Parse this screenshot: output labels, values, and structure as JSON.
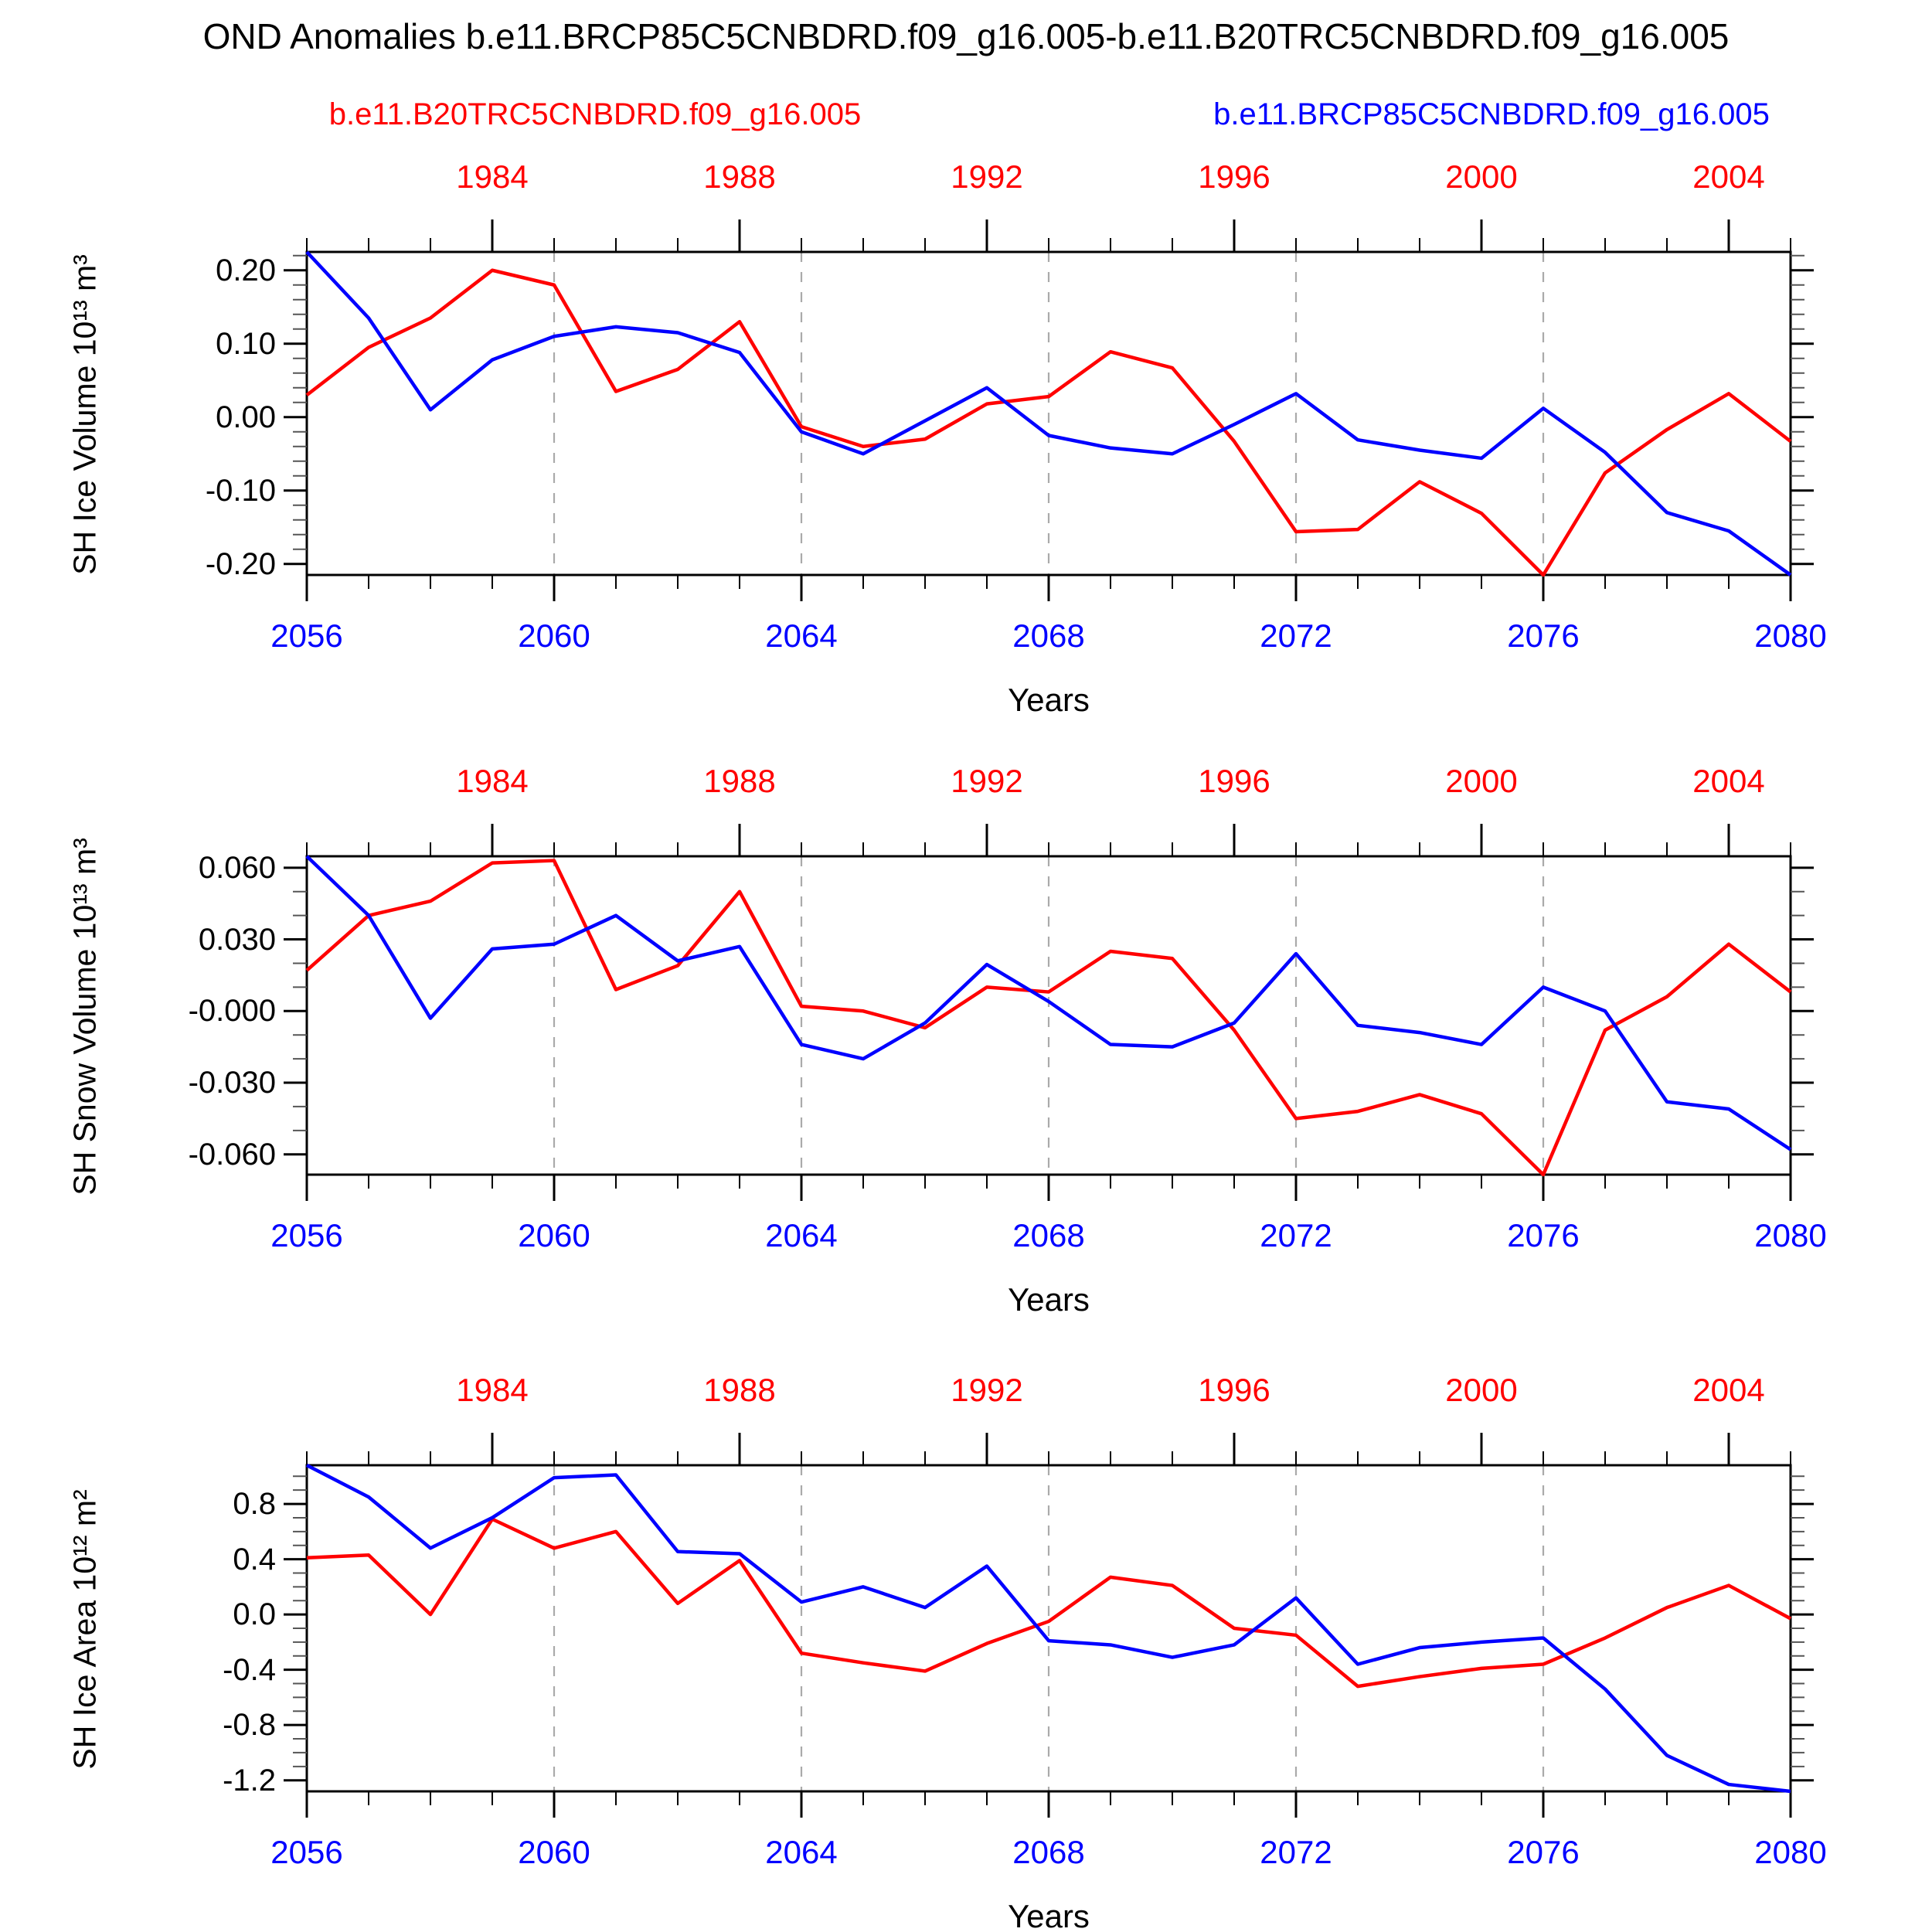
{
  "title": "OND Anomalies b.e11.BRCP85C5CNBDRD.f09_g16.005-b.e11.B20TRC5CNBDRD.f09_g16.005",
  "legend": {
    "red_label": "b.e11.B20TRC5CNBDRD.f09_g16.005",
    "blue_label": "b.e11.BRCP85C5CNBDRD.f09_g16.005"
  },
  "colors": {
    "red_series": "#ff0000",
    "blue_series": "#0000ff",
    "axis": "#000000",
    "gridline": "#aaaaaa"
  },
  "x_axis": {
    "xlabel": "Years",
    "bottom_years": [
      "2056",
      "2060",
      "2064",
      "2068",
      "2072",
      "2076",
      "2080"
    ],
    "top_years": [
      "1984",
      "1988",
      "1992",
      "1996",
      "2000",
      "2004"
    ],
    "year_start": 2056,
    "year_end": 2080
  },
  "chart_data": [
    {
      "type": "line",
      "title": "",
      "ylabel": "SH Ice Volume 10¹³ m³",
      "xlabel": "Years",
      "x_start": 2056,
      "x_step": 1,
      "ylim": [
        -0.215,
        0.225
      ],
      "yticks": [
        {
          "v": 0.2,
          "label": "0.20"
        },
        {
          "v": 0.1,
          "label": "0.10"
        },
        {
          "v": 0.0,
          "label": "0.00"
        },
        {
          "v": -0.1,
          "label": "-0.10"
        },
        {
          "v": -0.2,
          "label": "-0.20"
        }
      ],
      "minor_step": 0.02,
      "grid_years": [
        2060,
        2064,
        2068,
        2072,
        2076
      ],
      "series": [
        {
          "name": "b.e11.B20TRC5CNBDRD.f09_g16.005",
          "color": "red",
          "values": [
            0.03,
            0.095,
            0.135,
            0.2,
            0.18,
            0.035,
            0.065,
            0.13,
            -0.013,
            -0.04,
            -0.03,
            0.018,
            0.028,
            0.089,
            0.067,
            -0.033,
            -0.156,
            -0.153,
            -0.088,
            -0.131,
            -0.215,
            -0.076,
            -0.017,
            0.032,
            -0.033
          ]
        },
        {
          "name": "b.e11.BRCP85C5CNBDRD.f09_g16.005",
          "color": "blue",
          "values": [
            0.225,
            0.135,
            0.01,
            0.078,
            0.11,
            0.123,
            0.115,
            0.088,
            -0.02,
            -0.05,
            -0.005,
            0.04,
            -0.025,
            -0.042,
            -0.05,
            -0.01,
            0.032,
            -0.031,
            -0.045,
            -0.056,
            0.012,
            -0.048,
            -0.13,
            -0.155,
            -0.215
          ]
        }
      ]
    },
    {
      "type": "line",
      "title": "",
      "ylabel": "SH Snow Volume 10¹³ m³",
      "xlabel": "Years",
      "x_start": 2056,
      "x_step": 1,
      "ylim": [
        -0.0685,
        0.0648
      ],
      "yticks": [
        {
          "v": 0.06,
          "label": "0.060"
        },
        {
          "v": 0.03,
          "label": "0.030"
        },
        {
          "v": 0.0,
          "label": "-0.000"
        },
        {
          "v": -0.03,
          "label": "-0.030"
        },
        {
          "v": -0.06,
          "label": "-0.060"
        }
      ],
      "minor_step": 0.01,
      "grid_years": [
        2060,
        2064,
        2068,
        2072,
        2076
      ],
      "series": [
        {
          "name": "b.e11.B20TRC5CNBDRD.f09_g16.005",
          "color": "red",
          "values": [
            0.017,
            0.04,
            0.046,
            0.062,
            0.063,
            0.009,
            0.019,
            0.05,
            0.002,
            0.0,
            -0.007,
            0.01,
            0.008,
            0.025,
            0.022,
            -0.008,
            -0.045,
            -0.042,
            -0.035,
            -0.043,
            -0.0685,
            -0.008,
            0.006,
            0.028,
            0.008
          ]
        },
        {
          "name": "b.e11.BRCP85C5CNBDRD.f09_g16.005",
          "color": "blue",
          "values": [
            0.0648,
            0.04,
            -0.003,
            0.026,
            0.028,
            0.04,
            0.021,
            0.027,
            -0.014,
            -0.02,
            -0.005,
            0.0195,
            0.004,
            -0.014,
            -0.015,
            -0.005,
            0.024,
            -0.006,
            -0.009,
            -0.014,
            0.01,
            0.0,
            -0.038,
            -0.041,
            -0.058
          ]
        }
      ]
    },
    {
      "type": "line",
      "title": "",
      "ylabel": "SH Ice Area 10¹² m²",
      "xlabel": "Years",
      "x_start": 2056,
      "x_step": 1,
      "ylim": [
        -1.28,
        1.08
      ],
      "yticks": [
        {
          "v": 0.8,
          "label": "0.8"
        },
        {
          "v": 0.4,
          "label": "0.4"
        },
        {
          "v": 0.0,
          "label": "0.0"
        },
        {
          "v": -0.4,
          "label": "-0.4"
        },
        {
          "v": -0.8,
          "label": "-0.8"
        },
        {
          "v": -1.2,
          "label": "-1.2"
        }
      ],
      "minor_step": 0.1,
      "grid_years": [
        2060,
        2064,
        2068,
        2072,
        2076
      ],
      "series": [
        {
          "name": "b.e11.B20TRC5CNBDRD.f09_g16.005",
          "color": "red",
          "values": [
            0.41,
            0.43,
            0.0,
            0.69,
            0.48,
            0.6,
            0.08,
            0.39,
            -0.28,
            -0.35,
            -0.41,
            -0.21,
            -0.05,
            0.27,
            0.21,
            -0.1,
            -0.15,
            -0.52,
            -0.45,
            -0.39,
            -0.36,
            -0.17,
            0.05,
            0.21,
            -0.03
          ]
        },
        {
          "name": "b.e11.BRCP85C5CNBDRD.f09_g16.005",
          "color": "blue",
          "values": [
            1.08,
            0.85,
            0.48,
            0.7,
            0.99,
            1.01,
            0.455,
            0.44,
            0.09,
            0.2,
            0.05,
            0.35,
            -0.19,
            -0.22,
            -0.31,
            -0.22,
            0.12,
            -0.36,
            -0.24,
            -0.2,
            -0.17,
            -0.54,
            -1.02,
            -1.23,
            -1.28
          ]
        }
      ]
    }
  ]
}
